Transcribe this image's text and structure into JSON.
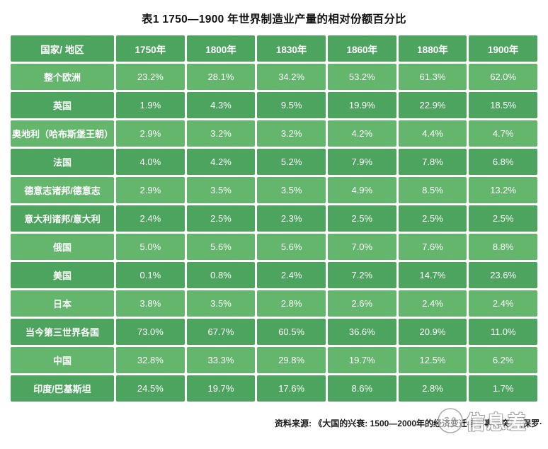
{
  "title": "表1 1750—1900 年世界制造业产量的相对份额百分比",
  "chart_data": {
    "type": "table",
    "columns": [
      "国家/ 地区",
      "1750年",
      "1800年",
      "1830年",
      "1860年",
      "1880年",
      "1900年"
    ],
    "rows": [
      {
        "label": "整个欧洲",
        "values": [
          "23.2%",
          "28.1%",
          "34.2%",
          "53.2%",
          "61.3%",
          "62.0%"
        ]
      },
      {
        "label": "英国",
        "values": [
          "1.9%",
          "4.3%",
          "9.5%",
          "19.9%",
          "22.9%",
          "18.5%"
        ]
      },
      {
        "label": "奥地利（哈布斯堡王朝）",
        "values": [
          "2.9%",
          "3.2%",
          "3.2%",
          "4.2%",
          "4.4%",
          "4.7%"
        ]
      },
      {
        "label": "法国",
        "values": [
          "4.0%",
          "4.2%",
          "5.2%",
          "7.9%",
          "7.8%",
          "6.8%"
        ]
      },
      {
        "label": "德意志诸邦/德意志",
        "values": [
          "2.9%",
          "3.5%",
          "3.5%",
          "4.9%",
          "8.5%",
          "13.2%"
        ]
      },
      {
        "label": "意大利诸邦/意大利",
        "values": [
          "2.4%",
          "2.5%",
          "2.3%",
          "2.5%",
          "2.5%",
          "2.5%"
        ]
      },
      {
        "label": "俄国",
        "values": [
          "5.0%",
          "5.6%",
          "5.6%",
          "7.0%",
          "7.6%",
          "8.8%"
        ]
      },
      {
        "label": "美国",
        "values": [
          "0.1%",
          "0.8%",
          "2.4%",
          "7.2%",
          "14.7%",
          "23.6%"
        ]
      },
      {
        "label": "日本",
        "values": [
          "3.8%",
          "3.5%",
          "2.8%",
          "2.6%",
          "2.4%",
          "2.4%"
        ]
      },
      {
        "label": "当今第三世界各国",
        "values": [
          "73.0%",
          "67.7%",
          "60.5%",
          "36.6%",
          "20.9%",
          "11.0%"
        ]
      },
      {
        "label": "中国",
        "values": [
          "32.8%",
          "33.3%",
          "29.8%",
          "19.7%",
          "12.5%",
          "6.2%"
        ]
      },
      {
        "label": "印度/巴基斯坦",
        "values": [
          "24.5%",
          "19.7%",
          "17.6%",
          "8.6%",
          "2.8%",
          "1.7%"
        ]
      }
    ],
    "title": "表1 1750—1900 年世界制造业产量的相对份额百分比",
    "legend_position": "none",
    "grid": "white-3px-gaps"
  },
  "source_note": "资料来源: 《大国的兴衰: 1500—2000年的经济变迁与军事冲突》（保罗·",
  "watermark": {
    "icon": "doodle-face-circle-icon",
    "text": "信息差"
  },
  "colors": {
    "row_dark": "#4CA45E",
    "row_light": "#63B66C",
    "header_bg": "#4CA45E",
    "grid_gap": "#FFFFFF",
    "cell_text": "#FFFFFF",
    "title_text": "#111111",
    "watermark_gray": "#9C9C9C"
  }
}
